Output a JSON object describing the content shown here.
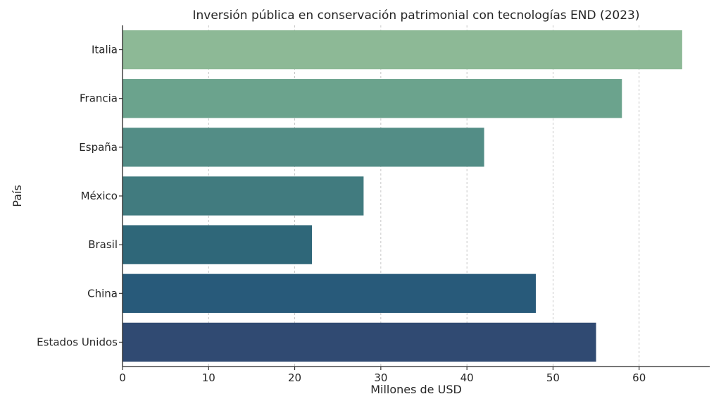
{
  "chart_data": {
    "type": "bar",
    "orientation": "horizontal",
    "title": "Inversión pública en conservación patrimonial con tecnologías END (2023)",
    "xlabel": "Millones de USD",
    "ylabel": "País",
    "categories": [
      "Italia",
      "Francia",
      "España",
      "México",
      "Brasil",
      "China",
      "Estados Unidos"
    ],
    "values": [
      65,
      58,
      42,
      28,
      22,
      48,
      55
    ],
    "colors": [
      "#8db996",
      "#6ba38d",
      "#538d86",
      "#417b7f",
      "#2f6779",
      "#285a7a",
      "#304a72"
    ],
    "xlim": [
      0,
      68.2
    ],
    "xticks": [
      0,
      10,
      20,
      30,
      40,
      50,
      60
    ],
    "grid": "x",
    "legend": "none"
  }
}
